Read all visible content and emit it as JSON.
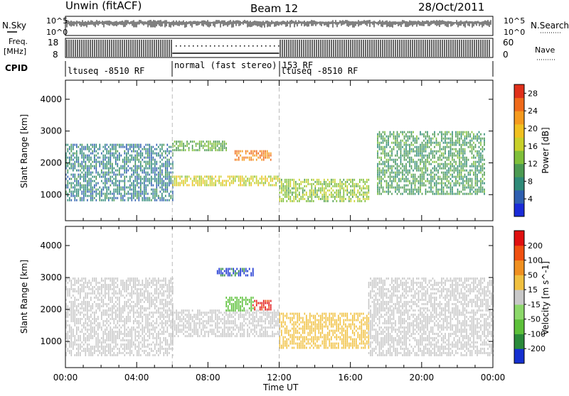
{
  "header": {
    "station": "Unwin (fitACF)",
    "beam": "Beam 12",
    "date": "28/Oct/2011"
  },
  "strips": {
    "nsky_label": "N.Sky",
    "nsky_ticks": [
      "10^5",
      "10^0"
    ],
    "nsearch_label": "N.Search",
    "nsearch_ticks": [
      "10^5",
      "10^0"
    ],
    "freq_label": "Freq.",
    "freq_unit": "[MHz]",
    "freq_ticks": [
      "18",
      "8"
    ],
    "nave_label": "Nave",
    "nave_ticks": [
      "60",
      "0"
    ],
    "cpid_label": "CPID",
    "cpid_segments": [
      "ltuseq -8510 RF",
      "normal (fast stereo) 153 RF",
      "ltuseq -8510 RF"
    ]
  },
  "chart_data": [
    {
      "type": "heatmap",
      "title": "",
      "xlabel": "",
      "ylabel": "Slant Range [km]",
      "xlim": [
        "00:00",
        "24:00"
      ],
      "ylim": [
        180,
        4600
      ],
      "x_ticks": [
        "00:00",
        "04:00",
        "08:00",
        "12:00",
        "16:00",
        "20:00",
        "00:00"
      ],
      "y_ticks": [
        1000,
        2000,
        3000,
        4000
      ],
      "colorbar": {
        "label": "Power [dB]",
        "ticks": [
          4,
          8,
          12,
          16,
          20,
          24,
          28
        ],
        "range": [
          0,
          30
        ],
        "colors": [
          "#1a2bd8",
          "#2f5fb0",
          "#2f8a78",
          "#4c9a52",
          "#7fbf3a",
          "#c8d02a",
          "#f0c020",
          "#f59a1e",
          "#ef6a1a",
          "#e0301a"
        ]
      },
      "regions": [
        {
          "t0": 0.0,
          "t1": 6.0,
          "r0": 800,
          "r1": 2600,
          "level": 7
        },
        {
          "t0": 6.0,
          "t1": 12.0,
          "r0": 1300,
          "r1": 1600,
          "level": 17
        },
        {
          "t0": 9.5,
          "t1": 11.5,
          "r0": 2100,
          "r1": 2400,
          "level": 24
        },
        {
          "t0": 6.0,
          "t1": 9.0,
          "r0": 2400,
          "r1": 2700,
          "level": 12
        },
        {
          "t0": 12.0,
          "t1": 17.0,
          "r0": 800,
          "r1": 1500,
          "level": 14
        },
        {
          "t0": 17.5,
          "t1": 23.5,
          "r0": 1000,
          "r1": 3000,
          "level": 10
        }
      ]
    },
    {
      "type": "heatmap",
      "title": "",
      "xlabel": "Time UT",
      "ylabel": "Slant Range [km]",
      "xlim": [
        "00:00",
        "24:00"
      ],
      "ylim": [
        180,
        4600
      ],
      "x_ticks": [
        "00:00",
        "04:00",
        "08:00",
        "12:00",
        "16:00",
        "20:00",
        "00:00"
      ],
      "y_ticks": [
        1000,
        2000,
        3000,
        4000
      ],
      "colorbar": {
        "label": "Velocity [m s^-1]",
        "ticks": [
          200,
          100,
          50,
          15,
          -15,
          -50,
          -100,
          -200
        ],
        "range": [
          -250,
          250
        ],
        "colors": [
          "#1530d0",
          "#2a8a3a",
          "#5cc03a",
          "#8cd86a",
          "#c8c8c8",
          "#f0c040",
          "#f09020",
          "#f05010",
          "#e01010"
        ]
      },
      "regions": [
        {
          "t0": 0.0,
          "t1": 6.0,
          "r0": 600,
          "r1": 3000,
          "level": 0
        },
        {
          "t0": 6.0,
          "t1": 12.0,
          "r0": 1200,
          "r1": 2000,
          "level": 0
        },
        {
          "t0": 9.0,
          "t1": 10.5,
          "r0": 2000,
          "r1": 2400,
          "level": -120
        },
        {
          "t0": 10.5,
          "t1": 11.5,
          "r0": 2000,
          "r1": 2300,
          "level": 200
        },
        {
          "t0": 8.5,
          "t1": 10.5,
          "r0": 3100,
          "r1": 3300,
          "level": -200
        },
        {
          "t0": 12.0,
          "t1": 17.0,
          "r0": 800,
          "r1": 1900,
          "level": 40
        },
        {
          "t0": 17.0,
          "t1": 24.0,
          "r0": 600,
          "r1": 3000,
          "level": 0
        }
      ]
    }
  ]
}
